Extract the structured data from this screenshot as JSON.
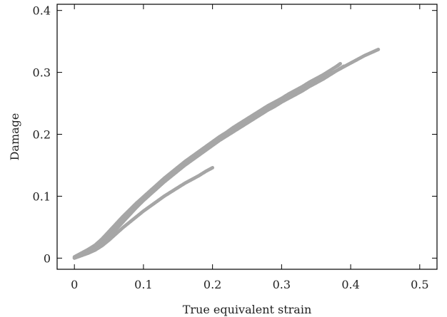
{
  "chart_data": {
    "type": "scatter",
    "title": "",
    "xlabel": "True equivalent strain",
    "ylabel": "Damage",
    "xlim": [
      -0.025,
      0.525
    ],
    "ylim": [
      -0.018,
      0.41
    ],
    "xticks": [
      0,
      0.1,
      0.2,
      0.3,
      0.4,
      0.5
    ],
    "xtick_labels": [
      "0",
      "0.1",
      "0.2",
      "0.3",
      "0.4",
      "0.5"
    ],
    "yticks": [
      0,
      0.1,
      0.2,
      0.3,
      0.4
    ],
    "ytick_labels": [
      "0",
      "0.1",
      "0.2",
      "0.3",
      "0.4"
    ],
    "grid": false,
    "marker_color": "#a6a6a6",
    "series": [
      {
        "x": [
          0,
          0.01,
          0.02,
          0.03,
          0.04,
          0.05,
          0.06,
          0.07,
          0.08,
          0.09,
          0.1,
          0.11,
          0.12,
          0.13,
          0.14,
          0.15,
          0.16,
          0.17,
          0.18,
          0.19,
          0.2,
          0.21,
          0.22,
          0.23,
          0.24,
          0.25,
          0.26,
          0.27,
          0.28,
          0.29,
          0.3,
          0.31,
          0.32,
          0.33,
          0.34,
          0.35,
          0.36,
          0.37,
          0.38,
          0.39,
          0.4,
          0.41,
          0.42,
          0.43,
          0.44
        ],
        "y": [
          0.001,
          0.006,
          0.012,
          0.018,
          0.027,
          0.038,
          0.05,
          0.063,
          0.075,
          0.087,
          0.097,
          0.107,
          0.117,
          0.127,
          0.136,
          0.145,
          0.153,
          0.161,
          0.169,
          0.177,
          0.185,
          0.193,
          0.201,
          0.208,
          0.215,
          0.222,
          0.229,
          0.236,
          0.243,
          0.249,
          0.255,
          0.261,
          0.267,
          0.273,
          0.279,
          0.285,
          0.291,
          0.297,
          0.303,
          0.309,
          0.315,
          0.321,
          0.327,
          0.332,
          0.337
        ]
      },
      {
        "x": [
          0,
          0.01,
          0.02,
          0.03,
          0.04,
          0.05,
          0.06,
          0.07,
          0.08,
          0.09,
          0.1,
          0.11,
          0.12,
          0.13,
          0.14,
          0.15,
          0.16,
          0.17,
          0.18,
          0.19,
          0.2,
          0.21,
          0.22,
          0.23,
          0.24,
          0.25,
          0.26,
          0.27,
          0.28,
          0.29,
          0.3,
          0.31,
          0.32,
          0.33,
          0.34,
          0.35,
          0.36,
          0.37,
          0.38,
          0.385
        ],
        "y": [
          0.002,
          0.008,
          0.014,
          0.021,
          0.031,
          0.043,
          0.055,
          0.067,
          0.078,
          0.089,
          0.099,
          0.109,
          0.119,
          0.129,
          0.138,
          0.147,
          0.156,
          0.164,
          0.172,
          0.18,
          0.188,
          0.196,
          0.203,
          0.211,
          0.218,
          0.225,
          0.232,
          0.239,
          0.246,
          0.252,
          0.258,
          0.265,
          0.271,
          0.277,
          0.284,
          0.29,
          0.296,
          0.303,
          0.31,
          0.314
        ]
      },
      {
        "x": [
          0,
          0.01,
          0.02,
          0.03,
          0.04,
          0.05,
          0.06,
          0.07,
          0.08,
          0.09,
          0.1,
          0.11,
          0.12,
          0.13,
          0.14,
          0.15,
          0.16,
          0.17,
          0.18,
          0.19,
          0.2,
          0.21,
          0.22,
          0.23,
          0.24,
          0.25,
          0.26,
          0.27,
          0.28,
          0.29,
          0.3,
          0.31,
          0.32,
          0.33,
          0.34,
          0.35,
          0.36,
          0.37,
          0.38,
          0.39
        ],
        "y": [
          0,
          0.005,
          0.01,
          0.016,
          0.024,
          0.035,
          0.046,
          0.058,
          0.07,
          0.082,
          0.093,
          0.103,
          0.113,
          0.123,
          0.132,
          0.141,
          0.15,
          0.158,
          0.166,
          0.174,
          0.182,
          0.19,
          0.197,
          0.204,
          0.211,
          0.218,
          0.225,
          0.232,
          0.239,
          0.245,
          0.252,
          0.258,
          0.264,
          0.27,
          0.277,
          0.283,
          0.289,
          0.296,
          0.303,
          0.31
        ]
      },
      {
        "x": [
          0,
          0.01,
          0.02,
          0.03,
          0.04,
          0.05,
          0.06,
          0.07,
          0.08,
          0.09,
          0.1,
          0.11,
          0.12,
          0.13,
          0.14,
          0.15,
          0.16,
          0.17,
          0.18,
          0.19,
          0.2
        ],
        "y": [
          0,
          0.004,
          0.008,
          0.013,
          0.02,
          0.029,
          0.039,
          0.049,
          0.058,
          0.067,
          0.076,
          0.084,
          0.092,
          0.1,
          0.107,
          0.114,
          0.121,
          0.127,
          0.133,
          0.14,
          0.146
        ]
      }
    ]
  }
}
